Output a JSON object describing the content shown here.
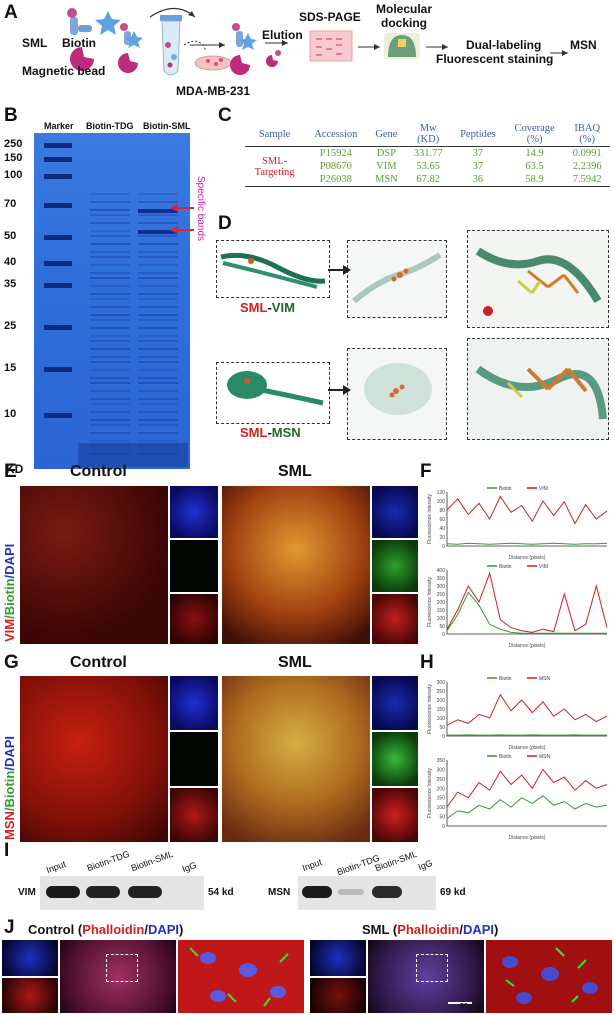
{
  "panels": {
    "A": "A",
    "B": "B",
    "C": "C",
    "D": "D",
    "E": "E",
    "F": "F",
    "G": "G",
    "H": "H",
    "I": "I",
    "J": "J"
  },
  "panelA": {
    "sml": "SML",
    "biotin": "Biotin",
    "magnetic_bead": "Magnetic bead",
    "cell_line": "MDA-MB-231",
    "elution": "Elution",
    "sds_page": "SDS-PAGE",
    "docking": "Molecular\ndocking",
    "dual_labeling": "Dual-labeling",
    "fluorescent": "Fluorescent staining",
    "target": "MSN"
  },
  "panelB": {
    "lane_marker": "Marker",
    "lane_tdg": "Biotin-TDG",
    "lane_sml": "Biotin-SML",
    "ladder": [
      "250",
      "150",
      "100",
      "70",
      "50",
      "40",
      "35",
      "25",
      "15",
      "10"
    ],
    "unit": "KD",
    "annotation": "Specific bands"
  },
  "panelC": {
    "headers": [
      "Sample",
      "Accession",
      "Gene",
      "Mw\n(KD)",
      "Peptides",
      "Coverage\n(%)",
      "IBAQ\n(%)"
    ],
    "sample_label": "SML-\nTargeting",
    "rows": [
      {
        "accession": "P15924",
        "gene": "DSP",
        "mw": "331.77",
        "peptides": "37",
        "coverage": "14.9",
        "ibaq": "0.0991"
      },
      {
        "accession": "P08670",
        "gene": "VIM",
        "mw": "53.65",
        "peptides": "37",
        "coverage": "63.5",
        "ibaq": "2.2396"
      },
      {
        "accession": "P26038",
        "gene": "MSN",
        "mw": "67.82",
        "peptides": "36",
        "coverage": "58.9",
        "ibaq": "7.5942"
      }
    ]
  },
  "panelD": {
    "label1_a": "SML",
    "label1_sep": "-",
    "label1_b": "VIM",
    "label2_a": "SML",
    "label2_sep": "-",
    "label2_b": "MSN"
  },
  "panelE": {
    "control": "Control",
    "sml": "SML",
    "side_a": "VIM",
    "side_b": "/Biotin",
    "side_c": "/DAPI"
  },
  "panelG": {
    "control": "Control",
    "sml": "SML",
    "side_a": "MSN",
    "side_b": "/Biotin",
    "side_c": "/DAPI"
  },
  "panelF": {
    "plot1": {
      "legend": [
        "Biotin",
        "VIM"
      ],
      "xlabel": "Distance (pixels)",
      "ylabel": "Fluorescence Intensity",
      "yticks": [
        "0",
        "20",
        "40",
        "60",
        "80",
        "100",
        "120"
      ]
    },
    "plot2": {
      "legend": [
        "Biotin",
        "VIM"
      ],
      "xlabel": "Distance (pixels)",
      "ylabel": "Fluorescence Intensity",
      "yticks": [
        "0",
        "50",
        "100",
        "150",
        "200",
        "250",
        "300",
        "350",
        "400"
      ]
    }
  },
  "panelH": {
    "plot1": {
      "legend": [
        "Biotin",
        "MSN"
      ],
      "xlabel": "Distance (pixels)",
      "ylabel": "Fluorescence Intensity",
      "yticks": [
        "0",
        "50",
        "100",
        "150",
        "200",
        "250",
        "300"
      ]
    },
    "plot2": {
      "legend": [
        "Biotin",
        "MSN"
      ],
      "xlabel": "Distance (pixels)",
      "ylabel": "Fluorescence Intensity",
      "yticks": [
        "0",
        "50",
        "100",
        "150",
        "200",
        "250",
        "300",
        "350"
      ]
    }
  },
  "panelI": {
    "left_lanes": [
      "Input",
      "Biotin-TDG",
      "Biotin-SML",
      "IgG"
    ],
    "left_target": "VIM",
    "left_size": "54 kd",
    "right_lanes": [
      "Input",
      "Biotin-TDG",
      "Biotin-SML",
      "IgG"
    ],
    "right_target": "MSN",
    "right_size": "69 kd"
  },
  "panelJ": {
    "control": "Control",
    "sml": "SML",
    "paren_open": "(",
    "phalloidin": "Phalloidin",
    "slash": "/",
    "dapi": "DAPI",
    "paren_close": ")",
    "scale": "50 μm"
  },
  "colors": {
    "gel_blue": "#2f6fd8",
    "red_stain": "#d02020",
    "green": "#2ea02c",
    "dapi": "#2030c0",
    "teal": "#2f7f6a"
  },
  "chart_data": [
    {
      "type": "line",
      "title": "F top",
      "xlabel": "Distance (pixels)",
      "ylabel": "Fluorescence Intensity",
      "ylim": [
        0,
        120
      ],
      "series": [
        {
          "name": "Biotin",
          "values": [
            5,
            4,
            6,
            5,
            4,
            5,
            6,
            5,
            4,
            5,
            6,
            5,
            4,
            5,
            5,
            6
          ]
        },
        {
          "name": "VIM",
          "values": [
            80,
            105,
            70,
            95,
            60,
            110,
            75,
            90,
            55,
            100,
            68,
            98,
            50,
            92,
            60,
            78
          ]
        }
      ]
    },
    {
      "type": "line",
      "title": "F bottom",
      "xlabel": "Distance (pixels)",
      "ylabel": "Fluorescence Intensity",
      "ylim": [
        0,
        400
      ],
      "series": [
        {
          "name": "Biotin",
          "values": [
            20,
            120,
            260,
            180,
            60,
            30,
            10,
            5,
            5,
            5,
            5,
            5,
            5,
            5,
            5,
            5
          ]
        },
        {
          "name": "VIM",
          "values": [
            30,
            150,
            300,
            200,
            380,
            90,
            40,
            20,
            10,
            30,
            15,
            250,
            20,
            60,
            300,
            40
          ]
        }
      ]
    },
    {
      "type": "line",
      "title": "H top",
      "xlabel": "Distance (pixels)",
      "ylabel": "Fluorescence Intensity",
      "ylim": [
        0,
        300
      ],
      "series": [
        {
          "name": "Biotin",
          "values": [
            5,
            5,
            6,
            5,
            5,
            6,
            5,
            5,
            6,
            5,
            5,
            5,
            6,
            5,
            5,
            5
          ]
        },
        {
          "name": "MSN",
          "values": [
            60,
            90,
            70,
            120,
            100,
            230,
            140,
            200,
            130,
            190,
            110,
            150,
            90,
            120,
            80,
            110
          ]
        }
      ]
    },
    {
      "type": "line",
      "title": "H bottom",
      "xlabel": "Distance (pixels)",
      "ylabel": "Fluorescence Intensity",
      "ylim": [
        0,
        350
      ],
      "series": [
        {
          "name": "Biotin",
          "values": [
            40,
            80,
            70,
            110,
            90,
            140,
            100,
            150,
            120,
            160,
            110,
            130,
            90,
            120,
            100,
            110
          ]
        },
        {
          "name": "MSN",
          "values": [
            100,
            180,
            150,
            230,
            190,
            290,
            220,
            270,
            200,
            300,
            230,
            260,
            190,
            240,
            200,
            220
          ]
        }
      ]
    }
  ]
}
